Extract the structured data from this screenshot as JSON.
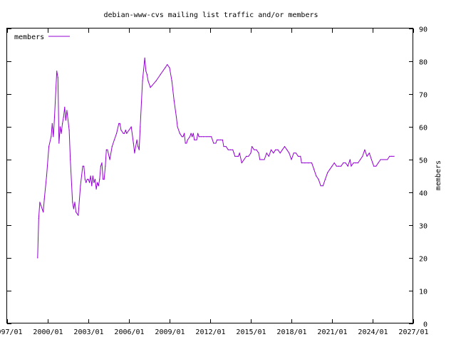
{
  "chart_data": {
    "type": "line",
    "title": "debian-www-cvs mailing list traffic and/or members",
    "xlabel": "",
    "ylabel": "members",
    "x_ticks": [
      "1997/01",
      "2000/01",
      "2003/01",
      "2006/01",
      "2009/01",
      "2012/01",
      "2015/01",
      "2018/01",
      "2021/01",
      "2024/01",
      "2027/01"
    ],
    "y_ticks": [
      0,
      10,
      20,
      30,
      40,
      50,
      60,
      70,
      80,
      90
    ],
    "xlim": [
      "1997/01",
      "2027/01"
    ],
    "ylim": [
      0,
      90
    ],
    "y_axis_side": "right",
    "legend_position": "top-left",
    "grid": false,
    "series": [
      {
        "name": "members",
        "color": "#9400d3",
        "points": [
          [
            "1999/04",
            20
          ],
          [
            "1999/05",
            32
          ],
          [
            "1999/06",
            37
          ],
          [
            "1999/07",
            36
          ],
          [
            "1999/09",
            34
          ],
          [
            "1999/10",
            38
          ],
          [
            "1999/12",
            45
          ],
          [
            "2000/02",
            54
          ],
          [
            "2000/04",
            57
          ],
          [
            "2000/05",
            61
          ],
          [
            "2000/06",
            57
          ],
          [
            "2000/07",
            63
          ],
          [
            "2000/09",
            77
          ],
          [
            "2000/10",
            75
          ],
          [
            "2000/11",
            55
          ],
          [
            "2000/12",
            60
          ],
          [
            "2001/01",
            58
          ],
          [
            "2001/02",
            61
          ],
          [
            "2001/03",
            63
          ],
          [
            "2001/04",
            66
          ],
          [
            "2001/05",
            62
          ],
          [
            "2001/06",
            65
          ],
          [
            "2001/08",
            59
          ],
          [
            "2001/09",
            50
          ],
          [
            "2001/11",
            37
          ],
          [
            "2001/12",
            35
          ],
          [
            "2002/01",
            37
          ],
          [
            "2002/02",
            34
          ],
          [
            "2002/04",
            33
          ],
          [
            "2002/06",
            42
          ],
          [
            "2002/08",
            48
          ],
          [
            "2002/09",
            48
          ],
          [
            "2002/10",
            44
          ],
          [
            "2002/11",
            43
          ],
          [
            "2002/12",
            44
          ],
          [
            "2003/01",
            44
          ],
          [
            "2003/02",
            43
          ],
          [
            "2003/03",
            45
          ],
          [
            "2003/04",
            42
          ],
          [
            "2003/05",
            45
          ],
          [
            "2003/06",
            43
          ],
          [
            "2003/07",
            44
          ],
          [
            "2003/08",
            41
          ],
          [
            "2003/09",
            43
          ],
          [
            "2003/10",
            42
          ],
          [
            "2003/11",
            44
          ],
          [
            "2003/12",
            48
          ],
          [
            "2004/01",
            49
          ],
          [
            "2004/02",
            44
          ],
          [
            "2004/03",
            44
          ],
          [
            "2004/04",
            48
          ],
          [
            "2004/05",
            53
          ],
          [
            "2004/06",
            53
          ],
          [
            "2004/08",
            50
          ],
          [
            "2004/10",
            54
          ],
          [
            "2004/12",
            56
          ],
          [
            "2005/02",
            58
          ],
          [
            "2005/04",
            61
          ],
          [
            "2005/05",
            61
          ],
          [
            "2005/06",
            59
          ],
          [
            "2005/08",
            58
          ],
          [
            "2005/09",
            58
          ],
          [
            "2005/10",
            59
          ],
          [
            "2005/11",
            58
          ],
          [
            "2006/01",
            59
          ],
          [
            "2006/03",
            60
          ],
          [
            "2006/05",
            55
          ],
          [
            "2006/06",
            52
          ],
          [
            "2006/08",
            56
          ],
          [
            "2006/09",
            54
          ],
          [
            "2006/10",
            53
          ],
          [
            "2006/11",
            60
          ],
          [
            "2007/01",
            74
          ],
          [
            "2007/03",
            81
          ],
          [
            "2007/04",
            77
          ],
          [
            "2007/05",
            76
          ],
          [
            "2007/06",
            74
          ],
          [
            "2007/08",
            72
          ],
          [
            "2008/01",
            74
          ],
          [
            "2008/05",
            76
          ],
          [
            "2008/09",
            78
          ],
          [
            "2008/11",
            79
          ],
          [
            "2009/01",
            78
          ],
          [
            "2009/03",
            74
          ],
          [
            "2009/05",
            68
          ],
          [
            "2009/07",
            63
          ],
          [
            "2009/08",
            60
          ],
          [
            "2009/10",
            58
          ],
          [
            "2009/12",
            57
          ],
          [
            "2010/01",
            57
          ],
          [
            "2010/02",
            58
          ],
          [
            "2010/03",
            55
          ],
          [
            "2010/04",
            55
          ],
          [
            "2010/05",
            56
          ],
          [
            "2010/07",
            57
          ],
          [
            "2010/08",
            58
          ],
          [
            "2010/09",
            57
          ],
          [
            "2010/10",
            58
          ],
          [
            "2010/11",
            56
          ],
          [
            "2011/01",
            56
          ],
          [
            "2011/02",
            58
          ],
          [
            "2011/03",
            57
          ],
          [
            "2011/05",
            57
          ],
          [
            "2011/07",
            57
          ],
          [
            "2011/10",
            57
          ],
          [
            "2011/12",
            57
          ],
          [
            "2012/02",
            57
          ],
          [
            "2012/04",
            55
          ],
          [
            "2012/06",
            55
          ],
          [
            "2012/07",
            56
          ],
          [
            "2012/08",
            56
          ],
          [
            "2012/10",
            56
          ],
          [
            "2012/12",
            56
          ],
          [
            "2013/01",
            54
          ],
          [
            "2013/03",
            54
          ],
          [
            "2013/05",
            53
          ],
          [
            "2013/07",
            53
          ],
          [
            "2013/09",
            53
          ],
          [
            "2013/10",
            52
          ],
          [
            "2013/11",
            51
          ],
          [
            "2014/01",
            51
          ],
          [
            "2014/02",
            51
          ],
          [
            "2014/03",
            52
          ],
          [
            "2014/05",
            49
          ],
          [
            "2014/07",
            50
          ],
          [
            "2014/09",
            51
          ],
          [
            "2014/11",
            51
          ],
          [
            "2015/01",
            52
          ],
          [
            "2015/02",
            54
          ],
          [
            "2015/04",
            53
          ],
          [
            "2015/06",
            53
          ],
          [
            "2015/08",
            52
          ],
          [
            "2015/09",
            50
          ],
          [
            "2015/11",
            50
          ],
          [
            "2016/01",
            50
          ],
          [
            "2016/03",
            52
          ],
          [
            "2016/05",
            51
          ],
          [
            "2016/07",
            53
          ],
          [
            "2016/09",
            52
          ],
          [
            "2016/11",
            53
          ],
          [
            "2017/01",
            53
          ],
          [
            "2017/03",
            52
          ],
          [
            "2017/05",
            53
          ],
          [
            "2017/07",
            54
          ],
          [
            "2017/09",
            53
          ],
          [
            "2017/11",
            52
          ],
          [
            "2018/01",
            50
          ],
          [
            "2018/03",
            52
          ],
          [
            "2018/05",
            52
          ],
          [
            "2018/07",
            51
          ],
          [
            "2018/09",
            51
          ],
          [
            "2018/10",
            49
          ],
          [
            "2019/01",
            49
          ],
          [
            "2019/04",
            49
          ],
          [
            "2019/07",
            49
          ],
          [
            "2019/09",
            47
          ],
          [
            "2019/11",
            45
          ],
          [
            "2020/01",
            44
          ],
          [
            "2020/03",
            42
          ],
          [
            "2020/05",
            42
          ],
          [
            "2020/07",
            44
          ],
          [
            "2020/09",
            46
          ],
          [
            "2020/11",
            47
          ],
          [
            "2021/01",
            48
          ],
          [
            "2021/03",
            49
          ],
          [
            "2021/05",
            48
          ],
          [
            "2021/07",
            48
          ],
          [
            "2021/09",
            48
          ],
          [
            "2021/11",
            49
          ],
          [
            "2022/01",
            49
          ],
          [
            "2022/03",
            48
          ],
          [
            "2022/05",
            50
          ],
          [
            "2022/06",
            48
          ],
          [
            "2022/08",
            49
          ],
          [
            "2022/10",
            49
          ],
          [
            "2022/12",
            49
          ],
          [
            "2023/02",
            50
          ],
          [
            "2023/04",
            51
          ],
          [
            "2023/06",
            53
          ],
          [
            "2023/08",
            51
          ],
          [
            "2023/10",
            52
          ],
          [
            "2023/12",
            50
          ],
          [
            "2024/01",
            49
          ],
          [
            "2024/02",
            48
          ],
          [
            "2024/04",
            48
          ],
          [
            "2024/06",
            49
          ],
          [
            "2024/08",
            50
          ],
          [
            "2024/10",
            50
          ],
          [
            "2024/12",
            50
          ],
          [
            "2025/02",
            50
          ],
          [
            "2025/04",
            51
          ],
          [
            "2025/06",
            51
          ],
          [
            "2025/08",
            51
          ]
        ]
      }
    ]
  }
}
